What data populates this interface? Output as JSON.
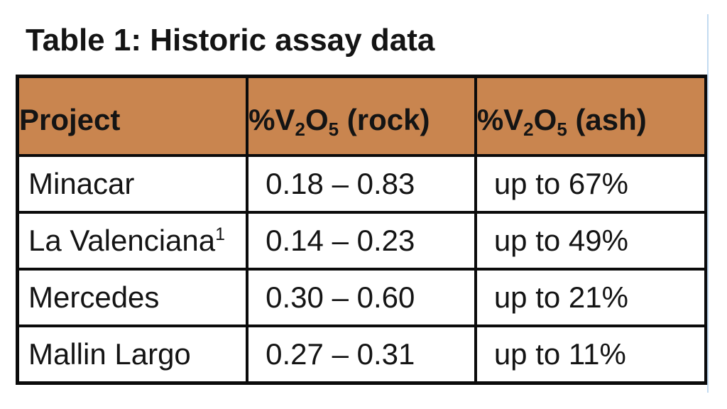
{
  "caption": "Table 1: Historic assay data",
  "colors": {
    "header_bg": "#C9854F",
    "border": "#0b0b0b",
    "accent_line": "#BDD7EE",
    "text": "#141414"
  },
  "table": {
    "header": {
      "project": "Project",
      "rock": {
        "pct_v": "%V",
        "sub2": "2",
        "o": "O",
        "sub5": "5",
        "rest": " (rock)"
      },
      "ash": {
        "pct_v": "%V",
        "sub2": "2",
        "o": "O",
        "sub5": "5",
        "rest": " (ash)"
      }
    },
    "rows": [
      {
        "project": "Minacar",
        "project_sup": "",
        "rock": "0.18 – 0.83",
        "ash": "up to 67%"
      },
      {
        "project": "La Valenciana",
        "project_sup": "1",
        "rock": "0.14 – 0.23",
        "ash": "up to 49%"
      },
      {
        "project": "Mercedes",
        "project_sup": "",
        "rock": "0.30 – 0.60",
        "ash": "up to 21%"
      },
      {
        "project": "Mallin Largo",
        "project_sup": "",
        "rock": "0.27 – 0.31",
        "ash": "up to 11%"
      }
    ]
  },
  "chart_data": {
    "type": "table",
    "title": "Table 1: Historic assay data",
    "columns": [
      "Project",
      "%V2O5 (rock)",
      "%V2O5 (ash)"
    ],
    "rows": [
      [
        "Minacar",
        "0.18 – 0.83",
        "up to 67%"
      ],
      [
        "La Valenciana (footnote 1)",
        "0.14 – 0.23",
        "up to 49%"
      ],
      [
        "Mercedes",
        "0.30 – 0.60",
        "up to 21%"
      ],
      [
        "Mallin Largo",
        "0.27 – 0.31",
        "up to 11%"
      ]
    ]
  }
}
